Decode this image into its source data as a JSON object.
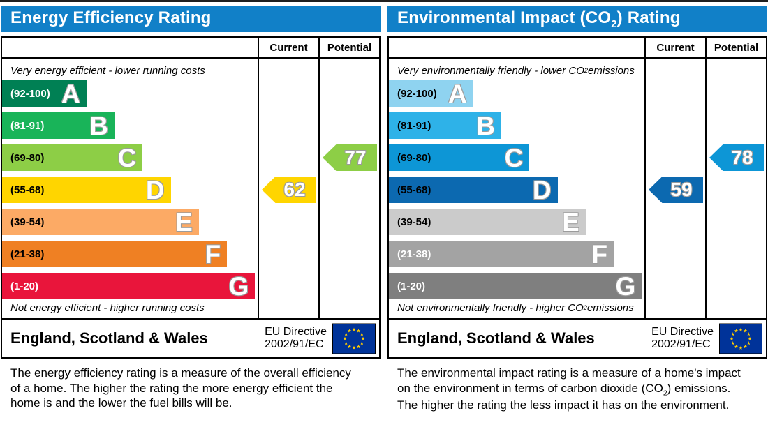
{
  "panels": [
    {
      "id": "energy-efficiency",
      "title_parts": {
        "pre": "Energy Efficiency Rating",
        "sub": "",
        "post": ""
      },
      "header_color": "#1180c8",
      "columns": {
        "current": "Current",
        "potential": "Potential"
      },
      "top_caption_parts": {
        "pre": "Very energy efficient - lower running costs",
        "sub": "",
        "post": ""
      },
      "bottom_caption_parts": {
        "pre": "Not energy efficient - higher running costs",
        "sub": "",
        "post": ""
      },
      "bands": [
        {
          "letter": "A",
          "range": "(92-100)",
          "color": "#008054",
          "width_pct": 33,
          "text_color": "#ffffff"
        },
        {
          "letter": "B",
          "range": "(81-91)",
          "color": "#19b459",
          "width_pct": 44,
          "text_color": "#ffffff"
        },
        {
          "letter": "C",
          "range": "(69-80)",
          "color": "#8dce46",
          "width_pct": 55,
          "text_color": "#000000"
        },
        {
          "letter": "D",
          "range": "(55-68)",
          "color": "#ffd500",
          "width_pct": 66,
          "text_color": "#000000"
        },
        {
          "letter": "E",
          "range": "(39-54)",
          "color": "#fcaa65",
          "width_pct": 77,
          "text_color": "#000000"
        },
        {
          "letter": "F",
          "range": "(21-38)",
          "color": "#ef8023",
          "width_pct": 88,
          "text_color": "#000000"
        },
        {
          "letter": "G",
          "range": "(1-20)",
          "color": "#e9153b",
          "width_pct": 99,
          "text_color": "#ffffff"
        }
      ],
      "current": {
        "value": "62",
        "band_index": 3,
        "color": "#ffd500"
      },
      "potential": {
        "value": "77",
        "band_index": 2,
        "color": "#8dce46"
      },
      "footer": {
        "region": "England, Scotland & Wales",
        "directive_line1": "EU Directive",
        "directive_line2": "2002/91/EC"
      },
      "description_parts": {
        "pre": "The energy efficiency rating is a measure of the overall efficiency of a home. The higher the rating the more energy efficient the home is and the lower the fuel bills will be.",
        "sub": "",
        "post": ""
      }
    },
    {
      "id": "environmental-impact",
      "title_parts": {
        "pre": "Environmental Impact (CO",
        "sub": "2",
        "post": ") Rating"
      },
      "header_color": "#1180c8",
      "columns": {
        "current": "Current",
        "potential": "Potential"
      },
      "top_caption_parts": {
        "pre": "Very environmentally friendly - lower CO",
        "sub": "2",
        "post": " emissions"
      },
      "bottom_caption_parts": {
        "pre": "Not environmentally friendly - higher CO",
        "sub": "2",
        "post": " emissions"
      },
      "bands": [
        {
          "letter": "A",
          "range": "(92-100)",
          "color": "#8fd3f0",
          "width_pct": 33,
          "text_color": "#000000"
        },
        {
          "letter": "B",
          "range": "(81-91)",
          "color": "#2eb2e8",
          "width_pct": 44,
          "text_color": "#000000"
        },
        {
          "letter": "C",
          "range": "(69-80)",
          "color": "#0d96d6",
          "width_pct": 55,
          "text_color": "#000000"
        },
        {
          "letter": "D",
          "range": "(55-68)",
          "color": "#0c69b0",
          "width_pct": 66,
          "text_color": "#000000"
        },
        {
          "letter": "E",
          "range": "(39-54)",
          "color": "#cbcbcb",
          "width_pct": 77,
          "text_color": "#000000"
        },
        {
          "letter": "F",
          "range": "(21-38)",
          "color": "#a3a3a3",
          "width_pct": 88,
          "text_color": "#ffffff"
        },
        {
          "letter": "G",
          "range": "(1-20)",
          "color": "#7f7f7f",
          "width_pct": 99,
          "text_color": "#ffffff"
        }
      ],
      "current": {
        "value": "59",
        "band_index": 3,
        "color": "#0c69b0"
      },
      "potential": {
        "value": "78",
        "band_index": 2,
        "color": "#0d96d6"
      },
      "footer": {
        "region": "England, Scotland & Wales",
        "directive_line1": "EU Directive",
        "directive_line2": "2002/91/EC"
      },
      "description_parts": {
        "pre": "The environmental impact rating is a measure of a home's impact on the environment in terms of carbon dioxide (CO",
        "sub": "2",
        "post": ") emissions. The higher the rating the less impact it has on the environment."
      }
    }
  ],
  "chart_data": [
    {
      "type": "bar",
      "title": "Energy Efficiency Rating",
      "categories": [
        "A (92-100)",
        "B (81-91)",
        "C (69-80)",
        "D (55-68)",
        "E (39-54)",
        "F (21-38)",
        "G (1-20)"
      ],
      "values": [
        33,
        44,
        55,
        66,
        77,
        88,
        99
      ],
      "values_note": "band bar lengths as percent of scale width",
      "xlabel": "",
      "ylabel": "",
      "legend": [
        "Current",
        "Potential"
      ],
      "annotations": {
        "current": 62,
        "current_band": "D",
        "potential": 77,
        "potential_band": "C"
      }
    },
    {
      "type": "bar",
      "title": "Environmental Impact (CO2) Rating",
      "categories": [
        "A (92-100)",
        "B (81-91)",
        "C (69-80)",
        "D (55-68)",
        "E (39-54)",
        "F (21-38)",
        "G (1-20)"
      ],
      "values": [
        33,
        44,
        55,
        66,
        77,
        88,
        99
      ],
      "values_note": "band bar lengths as percent of scale width",
      "xlabel": "",
      "ylabel": "",
      "legend": [
        "Current",
        "Potential"
      ],
      "annotations": {
        "current": 59,
        "current_band": "D",
        "potential": 78,
        "potential_band": "C"
      }
    }
  ]
}
